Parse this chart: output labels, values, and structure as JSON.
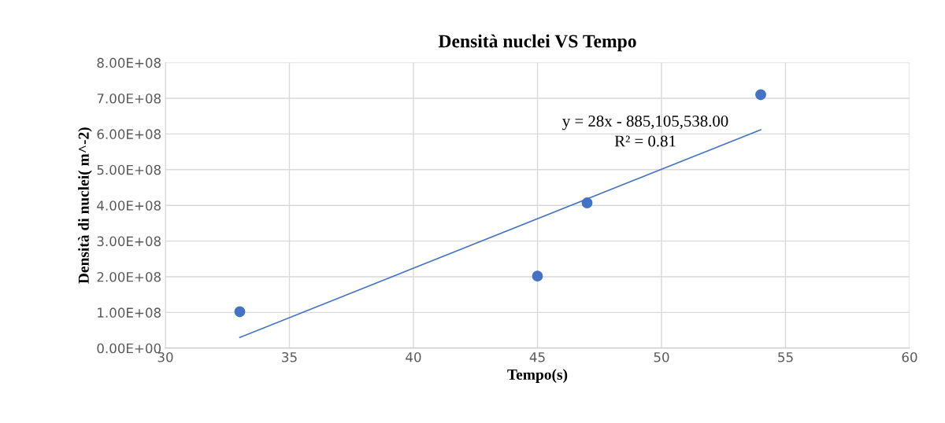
{
  "chart_data": {
    "type": "scatter",
    "title": "Densità nuclei VS Tempo",
    "xlabel": "Tempo(s)",
    "ylabel": "Densità di nuclei( m^-2)",
    "series": [
      {
        "marker": "circle",
        "color": "#4472c4",
        "x": [
          33,
          45,
          47,
          54
        ],
        "values": [
          102000000,
          202000000,
          407000000,
          710000000
        ]
      },
      {
        "type": "line",
        "marker": "none",
        "color": "#4472c4",
        "x": [
          33,
          54
        ],
        "values": [
          30000000,
          612000000
        ]
      }
    ],
    "annotations": [
      "y = 28x - 885,105,538.00",
      "R² = 0.81"
    ],
    "xlim": [
      30,
      60
    ],
    "xticks": [
      30,
      35,
      40,
      45,
      50,
      55,
      60
    ],
    "ylim": [
      0,
      800000000
    ],
    "yticks": [
      {
        "value": 0,
        "label": "0.00E+00"
      },
      {
        "value": 100000000,
        "label": "1.00E+08"
      },
      {
        "value": 200000000,
        "label": "2.00E+08"
      },
      {
        "value": 300000000,
        "label": "3.00E+08"
      },
      {
        "value": 400000000,
        "label": "4.00E+08"
      },
      {
        "value": 500000000,
        "label": "5.00E+08"
      },
      {
        "value": 600000000,
        "label": "6.00E+08"
      },
      {
        "value": 700000000,
        "label": "7.00E+08"
      },
      {
        "value": 800000000,
        "label": "8.00E+08"
      }
    ],
    "grid": true,
    "legend": false
  }
}
